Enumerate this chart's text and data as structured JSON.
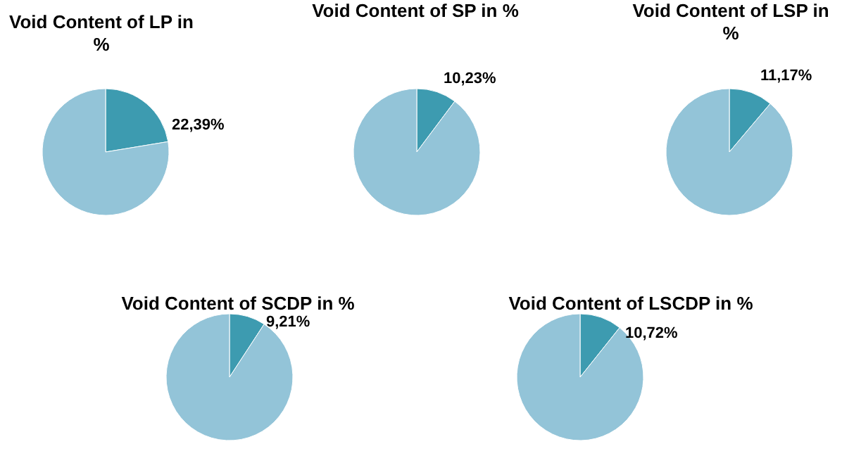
{
  "chart_data": [
    {
      "type": "pie",
      "title": "Void Content of LP in %",
      "categories": [
        null,
        null
      ],
      "values": [
        22.39,
        77.61
      ],
      "colors": [
        "#3d9bb0",
        "#93c4d8"
      ],
      "value_labels": [
        "22,39%",
        null
      ]
    },
    {
      "type": "pie",
      "title": "Void Content of SP in %",
      "categories": [
        null,
        null
      ],
      "values": [
        10.23,
        89.77
      ],
      "colors": [
        "#3d9bb0",
        "#93c4d8"
      ],
      "value_labels": [
        "10,23%",
        null
      ]
    },
    {
      "type": "pie",
      "title": "Void Content of LSP in %",
      "categories": [
        null,
        null
      ],
      "values": [
        11.17,
        88.83
      ],
      "colors": [
        "#3d9bb0",
        "#93c4d8"
      ],
      "value_labels": [
        "11,17%",
        null
      ]
    },
    {
      "type": "pie",
      "title": "Void Content of SCDP in %",
      "categories": [
        null,
        null
      ],
      "values": [
        9.21,
        90.79
      ],
      "colors": [
        "#3d9bb0",
        "#93c4d8"
      ],
      "value_labels": [
        "9,21%",
        null
      ]
    },
    {
      "type": "pie",
      "title": "Void Content of LSCDP in %",
      "categories": [
        null,
        null
      ],
      "values": [
        10.72,
        89.28
      ],
      "colors": [
        "#3d9bb0",
        "#93c4d8"
      ],
      "value_labels": [
        "10,72%",
        null
      ]
    }
  ]
}
